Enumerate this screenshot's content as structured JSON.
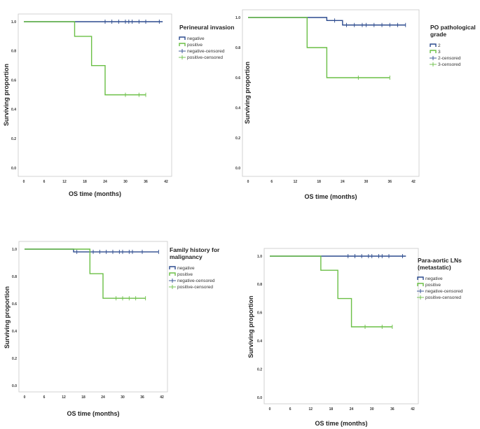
{
  "colors": {
    "negative": "#2b4a8e",
    "positive": "#6abf45",
    "axis": "#c8c8c8"
  },
  "chart_data": [
    {
      "type": "line",
      "title": "Perineural invasion",
      "xlabel": "OS time (months)",
      "ylabel": "Surviving proportion",
      "xticks": [
        0,
        6,
        12,
        18,
        24,
        30,
        36,
        42
      ],
      "yticks": [
        "0.0",
        "0.2",
        "0.4",
        "0.6",
        "0.8",
        "1.0"
      ],
      "xlim": [
        0,
        42
      ],
      "ylim": [
        0,
        1
      ],
      "legend_title": [
        "Perineural invasion"
      ],
      "legend": [
        "negative",
        "positive",
        "negative-censored",
        "positive-censored"
      ],
      "series": [
        {
          "name": "negative",
          "color_key": "negative",
          "steps": [
            [
              0,
              1.0
            ],
            [
              41,
              1.0
            ]
          ],
          "censored": [
            [
              24,
              1.0
            ],
            [
              26,
              1.0
            ],
            [
              28,
              1.0
            ],
            [
              30,
              1.0
            ],
            [
              31,
              1.0
            ],
            [
              32,
              1.0
            ],
            [
              34,
              1.0
            ],
            [
              36,
              1.0
            ],
            [
              40,
              1.0
            ]
          ]
        },
        {
          "name": "positive",
          "color_key": "positive",
          "steps": [
            [
              0,
              1.0
            ],
            [
              15,
              0.9
            ],
            [
              20,
              0.7
            ],
            [
              24,
              0.5
            ],
            [
              36,
              0.5
            ]
          ],
          "censored": [
            [
              30,
              0.5
            ],
            [
              34,
              0.5
            ],
            [
              36,
              0.5
            ]
          ]
        }
      ]
    },
    {
      "type": "line",
      "title": "PO pathological grade",
      "xlabel": "OS time (months)",
      "ylabel": "Surviving proportion",
      "xticks": [
        0,
        6,
        12,
        18,
        24,
        30,
        36,
        42
      ],
      "yticks": [
        "0.0",
        "0.2",
        "0.4",
        "0.6",
        "0.8",
        "1.0"
      ],
      "xlim": [
        0,
        42
      ],
      "ylim": [
        0,
        1
      ],
      "legend_title": [
        "PO pathological",
        "grade"
      ],
      "legend": [
        "2",
        "3",
        "2-censored",
        "3-censored"
      ],
      "series": [
        {
          "name": "2",
          "color_key": "negative",
          "steps": [
            [
              0,
              1.0
            ],
            [
              20,
              0.98
            ],
            [
              24,
              0.95
            ],
            [
              40,
              0.95
            ]
          ],
          "censored": [
            [
              22,
              0.98
            ],
            [
              25,
              0.95
            ],
            [
              27,
              0.95
            ],
            [
              29,
              0.95
            ],
            [
              30,
              0.95
            ],
            [
              32,
              0.95
            ],
            [
              34,
              0.95
            ],
            [
              36,
              0.95
            ],
            [
              38,
              0.95
            ],
            [
              40,
              0.95
            ]
          ]
        },
        {
          "name": "3",
          "color_key": "positive",
          "steps": [
            [
              0,
              1.0
            ],
            [
              15,
              0.8
            ],
            [
              20,
              0.6
            ],
            [
              36,
              0.6
            ]
          ],
          "censored": [
            [
              28,
              0.6
            ],
            [
              36,
              0.6
            ]
          ]
        }
      ]
    },
    {
      "type": "line",
      "title": "Family history for malignancy",
      "xlabel": "OS time (months)",
      "ylabel": "Surviving proportion",
      "xticks": [
        0,
        6,
        12,
        18,
        24,
        30,
        36,
        42
      ],
      "yticks": [
        "0.0",
        "0.2",
        "0.4",
        "0.6",
        "0.8",
        "1.0"
      ],
      "xlim": [
        0,
        42
      ],
      "ylim": [
        0,
        1
      ],
      "legend_title": [
        "Family history for",
        "malignancy"
      ],
      "legend": [
        "negative",
        "positive",
        "negative-censored",
        "positive-censored"
      ],
      "series": [
        {
          "name": "negative",
          "color_key": "negative",
          "steps": [
            [
              0,
              1.0
            ],
            [
              15,
              0.98
            ],
            [
              41,
              0.98
            ]
          ],
          "censored": [
            [
              16,
              0.98
            ],
            [
              21,
              0.98
            ],
            [
              23,
              0.98
            ],
            [
              25,
              0.98
            ],
            [
              27,
              0.98
            ],
            [
              29,
              0.98
            ],
            [
              30,
              0.98
            ],
            [
              32,
              0.98
            ],
            [
              33,
              0.98
            ],
            [
              36,
              0.98
            ],
            [
              41,
              0.98
            ]
          ]
        },
        {
          "name": "positive",
          "color_key": "positive",
          "steps": [
            [
              0,
              1.0
            ],
            [
              20,
              0.82
            ],
            [
              24,
              0.64
            ],
            [
              37,
              0.64
            ]
          ],
          "censored": [
            [
              28,
              0.64
            ],
            [
              30,
              0.64
            ],
            [
              32,
              0.64
            ],
            [
              34,
              0.64
            ],
            [
              37,
              0.64
            ]
          ]
        }
      ]
    },
    {
      "type": "line",
      "title": "Para-aortic LNs (metastatic)",
      "xlabel": "OS time (months)",
      "ylabel": "Surviving proportion",
      "xticks": [
        0,
        6,
        12,
        18,
        24,
        30,
        36,
        42
      ],
      "yticks": [
        "0.0",
        "0.2",
        "0.4",
        "0.6",
        "0.8",
        "1.0"
      ],
      "xlim": [
        0,
        42
      ],
      "ylim": [
        0,
        1
      ],
      "legend_title": [
        "Para-aortic LNs",
        "(metastatic)"
      ],
      "legend": [
        "negative",
        "positive",
        "negative-censored",
        "positive-censored"
      ],
      "series": [
        {
          "name": "negative",
          "color_key": "negative",
          "steps": [
            [
              0,
              1.0
            ],
            [
              40,
              1.0
            ]
          ],
          "censored": [
            [
              23,
              1.0
            ],
            [
              25,
              1.0
            ],
            [
              27,
              1.0
            ],
            [
              29,
              1.0
            ],
            [
              30,
              1.0
            ],
            [
              32,
              1.0
            ],
            [
              33,
              1.0
            ],
            [
              35,
              1.0
            ],
            [
              39,
              1.0
            ]
          ]
        },
        {
          "name": "positive",
          "color_key": "positive",
          "steps": [
            [
              0,
              1.0
            ],
            [
              15,
              0.9
            ],
            [
              20,
              0.7
            ],
            [
              24,
              0.5
            ],
            [
              36,
              0.5
            ]
          ],
          "censored": [
            [
              28,
              0.5
            ],
            [
              33,
              0.5
            ],
            [
              36,
              0.5
            ]
          ]
        }
      ]
    }
  ]
}
